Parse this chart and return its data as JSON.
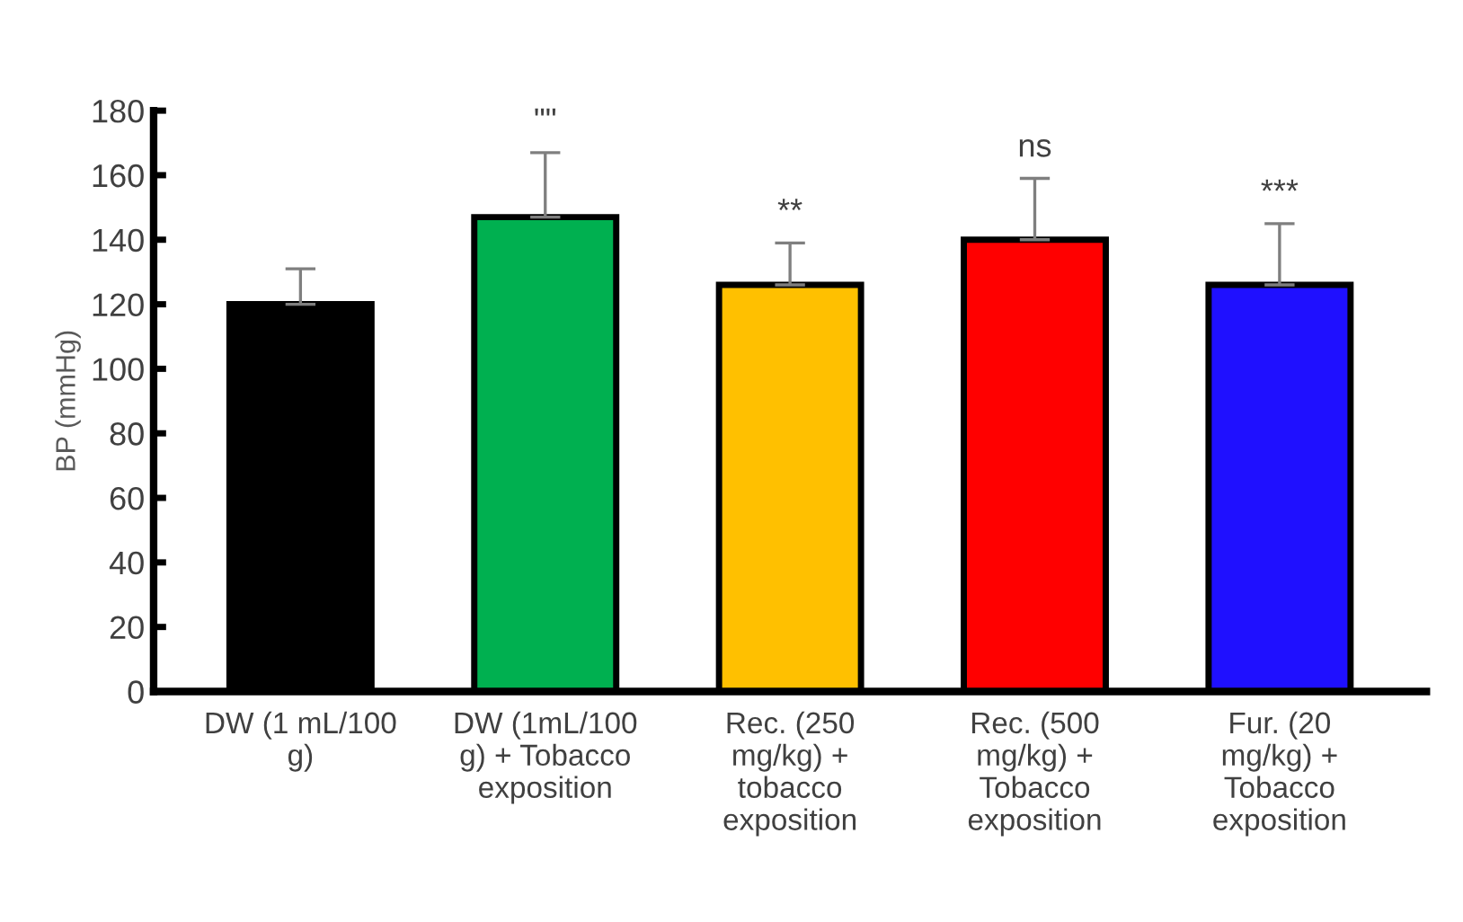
{
  "chart_data": {
    "type": "bar",
    "ylabel": "BP (mmHg)",
    "categories": [
      "DW (1 mL/100\ng)",
      "DW (1mL/100\ng) + Tobacco\nexposition",
      "Rec. (250\nmg/kg) +\ntobacco\nexposition",
      "Rec. (500\nmg/kg) +\nTobacco\nexposition",
      "Fur. (20\nmg/kg) +\nTobacco\nexposition"
    ],
    "values": [
      120,
      147,
      126,
      140,
      126
    ],
    "colors": [
      "#000000",
      "#00b050",
      "#ffc000",
      "#ff0000",
      "#1f10ff"
    ],
    "errors": [
      [
        120,
        131
      ],
      [
        147,
        167
      ],
      [
        126,
        139
      ],
      [
        140,
        159
      ],
      [
        126,
        145
      ]
    ],
    "annotations": [
      "\"\"",
      "**",
      "ns",
      "***"
    ],
    "ylim": [
      0,
      180
    ],
    "yticks": [
      0,
      20,
      40,
      60,
      80,
      100,
      120,
      140,
      160,
      180
    ],
    "grid": false,
    "legend": false
  }
}
